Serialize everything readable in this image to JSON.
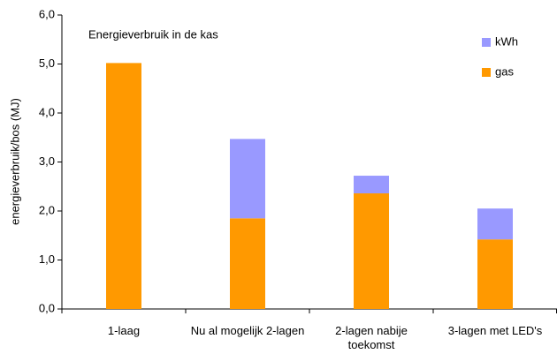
{
  "chart_data": {
    "type": "stacked_bar",
    "title": "Energieverbruik in de kas",
    "y_label": "energieverbruik/bos (MJ)",
    "categories": [
      "1-laag",
      "Nu al mogelijk 2-lagen",
      "2-lagen nabije toekomst",
      "3-lagen met LED's"
    ],
    "series": [
      {
        "name": "gas",
        "color": "#ff9900",
        "values": [
          5.02,
          1.85,
          2.36,
          1.42
        ]
      },
      {
        "name": "kWh",
        "color": "#9999ff",
        "values": [
          0,
          1.62,
          0.36,
          0.63
        ]
      }
    ],
    "ylim": [
      0,
      6
    ],
    "yticks": [
      {
        "value": 0,
        "label": "0,0"
      },
      {
        "value": 1,
        "label": "1,0"
      },
      {
        "value": 2,
        "label": "2,0"
      },
      {
        "value": 3,
        "label": "3,0"
      },
      {
        "value": 4,
        "label": "4,0"
      },
      {
        "value": 5,
        "label": "5,0"
      },
      {
        "value": 6,
        "label": "6,0"
      }
    ],
    "grid": false,
    "legend": "top-right"
  }
}
